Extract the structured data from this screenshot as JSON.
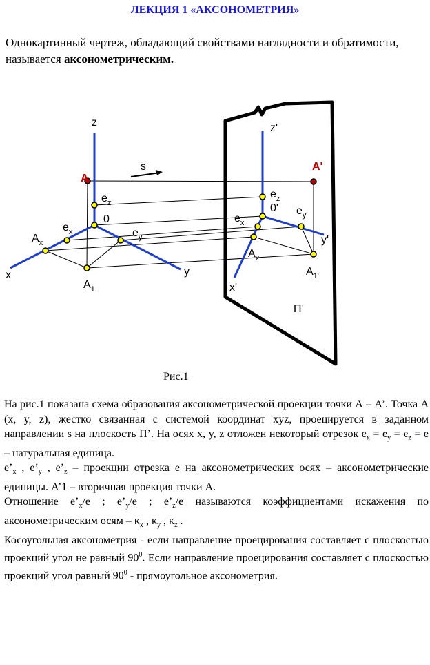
{
  "header": {
    "title": "ЛЕКЦИЯ 1 «АКСОНОМЕТРИЯ»"
  },
  "intro": [
    "Однокартинный чертеж, обладающий свойствами наглядности и обратимости, называется ",
    "аксонометрическим."
  ],
  "diagram": {
    "caption": "Рис.1",
    "labels": [
      {
        "text": "z"
      },
      {
        "text": "s"
      },
      {
        "text": "A"
      },
      {
        "text": "e",
        "sub": "z"
      },
      {
        "text": "0"
      },
      {
        "text": "A",
        "sub": "x"
      },
      {
        "text": "e",
        "sub": "x"
      },
      {
        "text": "e",
        "sub": "y"
      },
      {
        "text": "x"
      },
      {
        "text": "y"
      },
      {
        "text": "A",
        "sub": "1"
      },
      {
        "text": "z'"
      },
      {
        "text": "A'"
      },
      {
        "text": "e",
        "sub": "z"
      },
      {
        "text": "0'"
      },
      {
        "text": "e",
        "sub": "x'"
      },
      {
        "text": "e",
        "sub": "y'"
      },
      {
        "text": "A",
        "sub": "x"
      },
      {
        "text": "y'"
      },
      {
        "text": "A",
        "sub": "1'"
      },
      {
        "text": "x'"
      },
      {
        "text": "П’"
      }
    ]
  },
  "body": {
    "paragraphs": [
      [
        "На рис.1 показана  схема образования аксонометрической проекции  точки А – А’. Точка А (x, y, z), жестко связанная с системой координат xyz, проецируется в заданном направлении s на плоскость П’. На осях x, y, z отложен некоторый отрезок e",
        "x",
        " = e",
        "y",
        " = e",
        "z",
        " = e – натуральная единица."
      ],
      [
        "e’",
        "x",
        "  , e’",
        "y",
        " , e’",
        "z",
        " – проекции отрезка e на аксонометрических осях – аксонометрические единицы. A’1 – вторичная проекция точки А."
      ],
      [
        "Отношение e’",
        "x",
        "/e ; e’",
        "y",
        "/e ; e’",
        "z",
        "/e называются коэффициентами искажения по аксонометрическим осям – κ",
        "x",
        " , κ",
        "y",
        " , κ",
        "z",
        " ."
      ],
      [
        "Косоугольная аксонометрия - если направление проецирования составляет с плоскостью проекций угол не равный 90",
        "0",
        ". Если направление проецирования составляет с плоскостью проекций угол равный 90",
        "0",
        "  - прямоугольное аксонометрия."
      ]
    ]
  }
}
